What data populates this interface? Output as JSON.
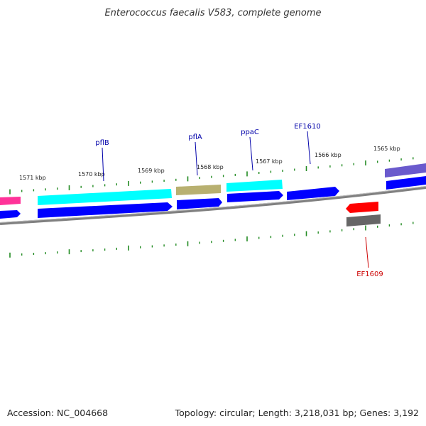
{
  "title": "Enterococcus faecalis V583, complete genome",
  "footer": {
    "accession": "Accession: NC_004668",
    "summary": "Topology: circular; Length: 3,218,031 bp; Genes: 3,192"
  },
  "colors": {
    "backbone": "#808080",
    "tick": "#228B22",
    "cds_forward": "#0000FF",
    "cds_reverse": "#FF0000",
    "gene_label_forward": "#0000AA",
    "gene_label_reverse": "#CC0000",
    "cyan": "#00FFFF",
    "khaki": "#B8B070",
    "pink": "#FF3399",
    "purple": "#6A5ACD",
    "gray": "#666666"
  },
  "kbp_labels": [
    "1571 kbp",
    "1570 kbp",
    "1569 kbp",
    "1568 kbp",
    "1567 kbp",
    "1566 kbp",
    "1565 kbp"
  ],
  "gene_labels": [
    {
      "name": "pflB",
      "strand": "forward"
    },
    {
      "name": "pflA",
      "strand": "forward"
    },
    {
      "name": "ppaC",
      "strand": "forward"
    },
    {
      "name": "EF1610",
      "strand": "forward"
    },
    {
      "name": "EF1609",
      "strand": "reverse"
    }
  ]
}
